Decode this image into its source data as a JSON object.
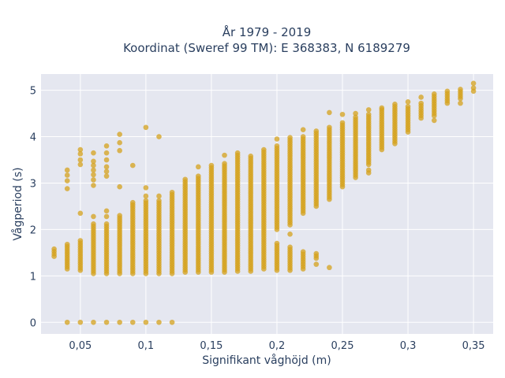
{
  "chart_data": {
    "type": "scatter",
    "title_line1": "År 1979 - 2019",
    "title_line2": "Koordinat (Sweref 99 TM): E 368383, N 6189279",
    "xlabel": "Signifikant våghöjd (m)",
    "ylabel": "Vågperiod (s)",
    "xlim": [
      0.02,
      0.365
    ],
    "ylim": [
      -0.25,
      5.35
    ],
    "x_ticks": [
      0.05,
      0.1,
      0.15,
      0.2,
      0.25,
      0.3,
      0.35
    ],
    "x_tick_labels": [
      "0,05",
      "0,1",
      "0,15",
      "0,2",
      "0,25",
      "0,3",
      "0,35"
    ],
    "y_ticks": [
      0,
      1,
      2,
      3,
      4,
      5
    ],
    "y_tick_labels": [
      "0",
      "1",
      "2",
      "3",
      "4",
      "5"
    ],
    "grid": true,
    "marker_color": "#d4a21c",
    "plot_bg_color": "#e5e7f0",
    "columns": [
      {
        "x": 0.03,
        "ranges": [
          [
            1.42,
            1.58
          ]
        ]
      },
      {
        "x": 0.04,
        "ranges": [
          [
            1.15,
            1.68
          ]
        ],
        "extras": [
          0,
          2.88,
          3.05,
          3.17,
          3.28
        ]
      },
      {
        "x": 0.05,
        "ranges": [
          [
            1.12,
            1.76
          ]
        ],
        "extras": [
          0,
          2.35,
          3.4,
          3.5,
          3.63,
          3.72
        ]
      },
      {
        "x": 0.06,
        "ranges": [
          [
            1.05,
            2.12
          ]
        ],
        "extras": [
          0,
          2.28,
          2.95,
          3.07,
          3.18,
          3.28,
          3.38,
          3.47,
          3.65
        ]
      },
      {
        "x": 0.07,
        "ranges": [
          [
            1.05,
            2.12
          ]
        ],
        "extras": [
          0,
          2.28,
          2.4,
          3.15,
          3.25,
          3.35,
          3.5,
          3.65,
          3.8
        ]
      },
      {
        "x": 0.08,
        "ranges": [
          [
            1.05,
            2.3
          ]
        ],
        "extras": [
          0,
          2.92,
          3.7,
          3.87,
          4.05
        ]
      },
      {
        "x": 0.09,
        "ranges": [
          [
            1.05,
            2.58
          ]
        ],
        "extras": [
          0,
          3.38
        ]
      },
      {
        "x": 0.1,
        "ranges": [
          [
            1.05,
            2.62
          ]
        ],
        "extras": [
          0,
          2.72,
          2.9,
          4.2
        ]
      },
      {
        "x": 0.11,
        "ranges": [
          [
            1.05,
            2.62
          ]
        ],
        "extras": [
          0,
          2.72,
          4.0
        ]
      },
      {
        "x": 0.12,
        "ranges": [
          [
            1.05,
            2.8
          ]
        ],
        "extras": [
          0
        ]
      },
      {
        "x": 0.13,
        "ranges": [
          [
            1.08,
            3.08
          ]
        ]
      },
      {
        "x": 0.14,
        "ranges": [
          [
            1.08,
            3.15
          ]
        ],
        "extras": [
          3.35
        ]
      },
      {
        "x": 0.15,
        "ranges": [
          [
            1.08,
            3.38
          ]
        ]
      },
      {
        "x": 0.16,
        "ranges": [
          [
            1.08,
            3.42
          ]
        ],
        "extras": [
          3.6
        ]
      },
      {
        "x": 0.17,
        "ranges": [
          [
            1.1,
            3.65
          ]
        ]
      },
      {
        "x": 0.18,
        "ranges": [
          [
            1.1,
            3.58
          ]
        ]
      },
      {
        "x": 0.19,
        "ranges": [
          [
            1.15,
            3.72
          ]
        ]
      },
      {
        "x": 0.2,
        "ranges": [
          [
            1.12,
            1.7
          ],
          [
            2.0,
            3.8
          ]
        ],
        "extras": [
          3.95
        ]
      },
      {
        "x": 0.21,
        "ranges": [
          [
            1.12,
            1.62
          ],
          [
            2.1,
            3.98
          ]
        ],
        "extras": [
          1.9
        ]
      },
      {
        "x": 0.22,
        "ranges": [
          [
            1.15,
            1.52
          ],
          [
            2.35,
            4.0
          ]
        ],
        "extras": [
          4.15
        ]
      },
      {
        "x": 0.23,
        "ranges": [
          [
            1.38,
            1.48
          ],
          [
            2.5,
            4.12
          ]
        ],
        "extras": [
          1.25
        ]
      },
      {
        "x": 0.24,
        "ranges": [
          [
            2.65,
            4.2
          ]
        ],
        "extras": [
          1.18,
          4.52
        ]
      },
      {
        "x": 0.25,
        "ranges": [
          [
            2.92,
            4.3
          ]
        ],
        "extras": [
          4.48
        ]
      },
      {
        "x": 0.26,
        "ranges": [
          [
            3.12,
            4.42
          ]
        ],
        "extras": [
          4.5
        ]
      },
      {
        "x": 0.27,
        "ranges": [
          [
            3.4,
            4.48
          ]
        ],
        "extras": [
          3.28,
          3.22,
          4.58
        ]
      },
      {
        "x": 0.28,
        "ranges": [
          [
            3.72,
            4.58
          ]
        ],
        "extras": [
          4.62
        ]
      },
      {
        "x": 0.29,
        "ranges": [
          [
            3.85,
            4.7
          ]
        ]
      },
      {
        "x": 0.3,
        "ranges": [
          [
            4.1,
            4.65
          ]
        ],
        "extras": [
          4.75
        ]
      },
      {
        "x": 0.31,
        "ranges": [
          [
            4.4,
            4.72
          ]
        ],
        "extras": [
          4.85
        ]
      },
      {
        "x": 0.32,
        "ranges": [
          [
            4.45,
            4.92
          ]
        ],
        "extras": [
          4.35
        ]
      },
      {
        "x": 0.33,
        "ranges": [
          [
            4.72,
            4.98
          ]
        ]
      },
      {
        "x": 0.34,
        "ranges": [
          [
            4.82,
            5.02
          ]
        ],
        "extras": [
          4.72
        ]
      },
      {
        "x": 0.35,
        "ranges": [
          [
            4.98,
            5.05
          ]
        ],
        "extras": [
          5.15
        ]
      }
    ]
  }
}
